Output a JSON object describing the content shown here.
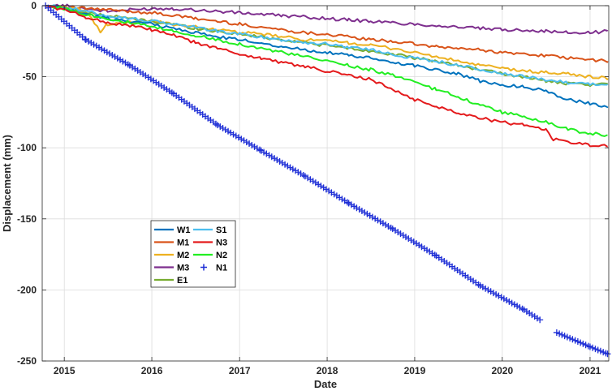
{
  "chart_data": {
    "type": "line",
    "xlabel": "Date",
    "ylabel": "Displacement (mm)",
    "xlim": [
      "2014-10-01",
      "2021-03-20"
    ],
    "ylim": [
      -250,
      0
    ],
    "x_ticks": [
      "2015",
      "2016",
      "2017",
      "2018",
      "2019",
      "2020",
      "2021"
    ],
    "y_ticks": [
      0,
      -50,
      -100,
      -150,
      -200,
      -250
    ],
    "grid": true,
    "legend_position": "lower-left",
    "series": [
      {
        "name": "W1",
        "color": "#0072BD",
        "marker": "none",
        "x": [
          "2014-10-15",
          "2015-01-01",
          "2015-04-01",
          "2015-07-01",
          "2015-10-01",
          "2016-01-01",
          "2016-04-01",
          "2016-07-01",
          "2016-10-01",
          "2017-01-01",
          "2017-04-01",
          "2017-07-01",
          "2017-10-01",
          "2018-01-01",
          "2018-04-01",
          "2018-07-01",
          "2018-10-01",
          "2019-01-01",
          "2019-04-01",
          "2019-07-01",
          "2019-10-01",
          "2020-01-01",
          "2020-04-01",
          "2020-07-01",
          "2020-10-01",
          "2021-01-01",
          "2021-03-15"
        ],
        "y": [
          0,
          -2,
          -6,
          -9,
          -11,
          -13,
          -16,
          -19,
          -22,
          -24,
          -26,
          -29,
          -31,
          -33,
          -35,
          -37,
          -40,
          -42,
          -45,
          -48,
          -53,
          -56,
          -57,
          -60,
          -66,
          -69,
          -71
        ]
      },
      {
        "name": "M1",
        "color": "#D95319",
        "marker": "none",
        "x": [
          "2014-10-15",
          "2015-01-01",
          "2015-04-01",
          "2015-07-01",
          "2015-10-01",
          "2016-01-01",
          "2016-04-01",
          "2016-07-01",
          "2016-10-01",
          "2017-01-01",
          "2017-04-01",
          "2017-07-01",
          "2017-10-01",
          "2018-01-01",
          "2018-04-01",
          "2018-07-01",
          "2018-10-01",
          "2019-01-01",
          "2019-04-01",
          "2019-07-01",
          "2019-10-01",
          "2020-01-01",
          "2020-04-01",
          "2020-07-01",
          "2020-10-01",
          "2021-01-01",
          "2021-03-15"
        ],
        "y": [
          0,
          -1,
          -2,
          -3,
          -4,
          -5,
          -7,
          -9,
          -11,
          -13,
          -15,
          -17,
          -19,
          -20,
          -22,
          -24,
          -25,
          -27,
          -29,
          -30,
          -31,
          -33,
          -34,
          -35,
          -37,
          -38,
          -39
        ]
      },
      {
        "name": "M2",
        "color": "#EDB120",
        "marker": "none",
        "x": [
          "2014-10-15",
          "2015-01-01",
          "2015-04-01",
          "2015-06-01",
          "2015-07-01",
          "2015-10-01",
          "2016-01-01",
          "2016-04-01",
          "2016-07-01",
          "2016-10-01",
          "2017-01-01",
          "2017-04-01",
          "2017-07-01",
          "2017-10-01",
          "2018-01-01",
          "2018-04-01",
          "2018-07-01",
          "2018-10-01",
          "2019-01-01",
          "2019-04-01",
          "2019-07-01",
          "2019-10-01",
          "2020-01-01",
          "2020-04-01",
          "2020-07-01",
          "2020-10-01",
          "2021-01-01",
          "2021-03-15"
        ],
        "y": [
          0,
          -1,
          -4,
          -18,
          -13,
          -12,
          -11,
          -13,
          -15,
          -17,
          -19,
          -20,
          -22,
          -24,
          -25,
          -26,
          -28,
          -30,
          -33,
          -36,
          -39,
          -42,
          -44,
          -46,
          -47,
          -48,
          -50,
          -51
        ]
      },
      {
        "name": "M3",
        "color": "#7E2F8E",
        "marker": "none",
        "x": [
          "2014-10-15",
          "2015-01-01",
          "2015-04-01",
          "2015-07-01",
          "2015-10-01",
          "2016-01-01",
          "2016-04-01",
          "2016-07-01",
          "2016-10-01",
          "2017-01-01",
          "2017-04-01",
          "2017-07-01",
          "2017-10-01",
          "2018-01-01",
          "2018-04-01",
          "2018-07-01",
          "2018-10-01",
          "2019-01-01",
          "2019-04-01",
          "2019-07-01",
          "2019-10-01",
          "2020-01-01",
          "2020-04-01",
          "2020-07-01",
          "2020-10-01",
          "2021-01-01",
          "2021-03-15"
        ],
        "y": [
          0,
          0,
          -2,
          -4,
          -3,
          -2,
          -2,
          -3,
          -4,
          -5,
          -6,
          -7,
          -8,
          -9,
          -10,
          -11,
          -12,
          -13,
          -14,
          -15,
          -16,
          -17,
          -17,
          -18,
          -19,
          -19,
          -18
        ]
      },
      {
        "name": "E1",
        "color": "#77AC30",
        "marker": "none",
        "x": [
          "2014-10-15",
          "2015-01-01",
          "2015-04-01",
          "2015-07-01",
          "2015-10-01",
          "2016-01-01",
          "2016-04-01",
          "2016-07-01",
          "2016-10-01",
          "2017-01-01",
          "2017-04-01",
          "2017-07-01",
          "2017-10-01",
          "2018-01-01",
          "2018-04-01",
          "2018-07-01",
          "2018-10-01",
          "2019-01-01",
          "2019-04-01",
          "2019-07-01",
          "2019-10-01",
          "2020-01-01",
          "2020-04-01",
          "2020-07-01",
          "2020-10-01",
          "2021-01-01",
          "2021-03-15"
        ],
        "y": [
          0,
          -2,
          -5,
          -7,
          -9,
          -11,
          -13,
          -16,
          -18,
          -20,
          -22,
          -24,
          -26,
          -28,
          -30,
          -32,
          -34,
          -37,
          -39,
          -42,
          -45,
          -48,
          -50,
          -53,
          -55,
          -56,
          -55
        ]
      },
      {
        "name": "S1",
        "color": "#4DBEEE",
        "marker": "none",
        "x": [
          "2014-10-15",
          "2015-01-01",
          "2015-04-01",
          "2015-07-01",
          "2015-10-01",
          "2016-01-01",
          "2016-04-01",
          "2016-07-01",
          "2016-10-01",
          "2017-01-01",
          "2017-04-01",
          "2017-07-01",
          "2017-10-01",
          "2018-01-01",
          "2018-04-01",
          "2018-07-01",
          "2018-10-01",
          "2019-01-01",
          "2019-04-01",
          "2019-07-01",
          "2019-10-01",
          "2020-01-01",
          "2020-04-01",
          "2020-07-01",
          "2020-10-01",
          "2021-01-01",
          "2021-03-15"
        ],
        "y": [
          0,
          -1,
          -4,
          -7,
          -9,
          -11,
          -13,
          -15,
          -18,
          -20,
          -22,
          -24,
          -26,
          -27,
          -29,
          -31,
          -34,
          -37,
          -39,
          -42,
          -45,
          -48,
          -50,
          -52,
          -54,
          -55,
          -56
        ]
      },
      {
        "name": "N3",
        "color": "#E41A1C",
        "marker": "none",
        "x": [
          "2014-10-15",
          "2015-01-01",
          "2015-04-01",
          "2015-07-01",
          "2015-10-01",
          "2016-01-01",
          "2016-04-01",
          "2016-07-01",
          "2016-10-01",
          "2017-01-01",
          "2017-04-01",
          "2017-07-01",
          "2017-10-01",
          "2018-01-01",
          "2018-04-01",
          "2018-07-01",
          "2018-10-01",
          "2019-01-01",
          "2019-04-01",
          "2019-07-01",
          "2019-10-01",
          "2020-01-01",
          "2020-04-01",
          "2020-07-01",
          "2020-08-01",
          "2020-10-01",
          "2021-01-01",
          "2021-03-15"
        ],
        "y": [
          0,
          -3,
          -8,
          -12,
          -14,
          -17,
          -21,
          -26,
          -30,
          -34,
          -37,
          -40,
          -43,
          -46,
          -49,
          -52,
          -59,
          -66,
          -71,
          -75,
          -79,
          -82,
          -84,
          -87,
          -94,
          -96,
          -98,
          -99
        ]
      },
      {
        "name": "N2",
        "color": "#22EE22",
        "marker": "none",
        "x": [
          "2014-10-15",
          "2015-01-01",
          "2015-04-01",
          "2015-07-01",
          "2015-10-01",
          "2016-01-01",
          "2016-04-01",
          "2016-07-01",
          "2016-10-01",
          "2017-01-01",
          "2017-04-01",
          "2017-07-01",
          "2017-10-01",
          "2018-01-01",
          "2018-04-01",
          "2018-07-01",
          "2018-10-01",
          "2019-01-01",
          "2019-04-01",
          "2019-07-01",
          "2019-10-01",
          "2020-01-01",
          "2020-04-01",
          "2020-07-01",
          "2020-10-01",
          "2021-01-01",
          "2021-03-15"
        ],
        "y": [
          0,
          -2,
          -6,
          -9,
          -12,
          -15,
          -18,
          -21,
          -24,
          -27,
          -30,
          -33,
          -36,
          -39,
          -42,
          -45,
          -49,
          -54,
          -59,
          -64,
          -70,
          -75,
          -78,
          -82,
          -87,
          -90,
          -91
        ]
      },
      {
        "name": "N1",
        "color": "#1F2FD6",
        "marker": "plus",
        "line": "none",
        "x": [
          "2014-10-15",
          "2015-04-01",
          "2015-10-01",
          "2016-04-01",
          "2016-10-01",
          "2017-04-01",
          "2017-10-01",
          "2018-04-01",
          "2018-10-01",
          "2019-04-01",
          "2019-10-01",
          "2020-04-01",
          "2020-06-15",
          "2020-08-15",
          "2021-01-01",
          "2021-03-15"
        ],
        "y": [
          0,
          -24,
          -42,
          -62,
          -84,
          -102,
          -120,
          -139,
          -157,
          -176,
          -197,
          -214,
          -222,
          -230,
          -240,
          -245
        ],
        "gap_after": "2020-06-15"
      }
    ]
  }
}
